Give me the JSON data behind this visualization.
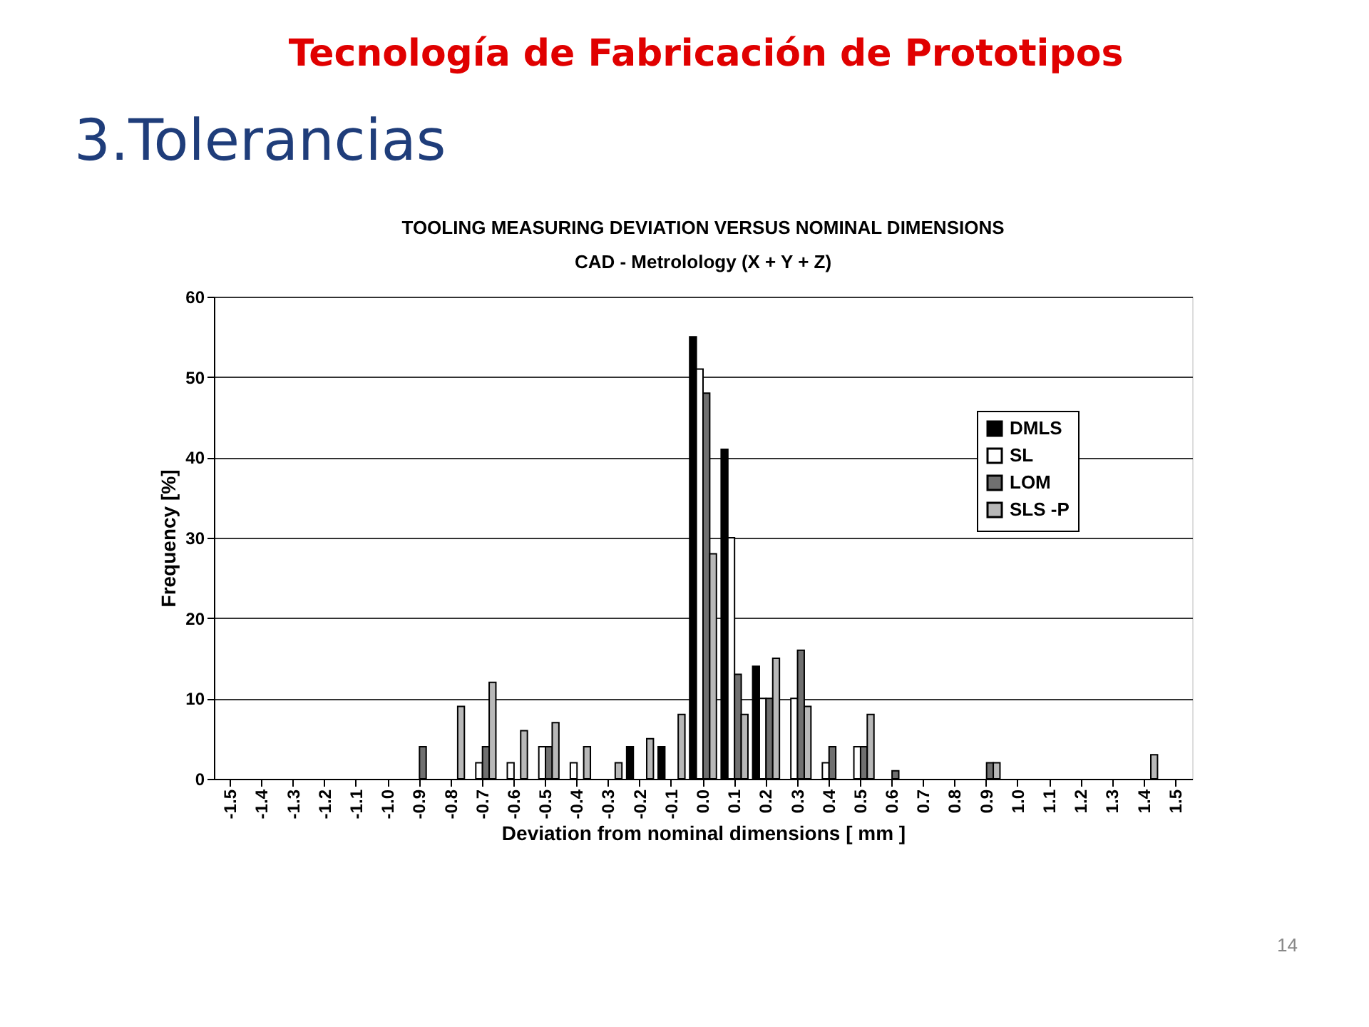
{
  "chart_data": {
    "type": "bar",
    "title": "TOOLING MEASURING DEVIATION VERSUS NOMINAL DIMENSIONS",
    "subtitle": "CAD - Metrolology  (X + Y + Z)",
    "xlabel": "Deviation from nominal dimensions [ mm ]",
    "ylabel": "Frequency [%]",
    "annotations": [
      "Tecnología de Fabricación de Prototipos",
      "3.Tolerancias",
      "14"
    ],
    "categories": [
      "-1.5",
      "-1.4",
      "-1.3",
      "-1.2",
      "-1.1",
      "-1.0",
      "-0.9",
      "-0.8",
      "-0.7",
      "-0.6",
      "-0.5",
      "-0.4",
      "-0.3",
      "-0.2",
      "-0.1",
      "0.0",
      "0.1",
      "0.2",
      "0.3",
      "0.4",
      "0.5",
      "0.6",
      "0.7",
      "0.8",
      "0.9",
      "1.0",
      "1.1",
      "1.2",
      "1.3",
      "1.4",
      "1.5"
    ],
    "series": [
      {
        "name": "DMLS",
        "color": "#000000",
        "values": [
          null,
          null,
          null,
          null,
          null,
          null,
          null,
          null,
          null,
          null,
          null,
          null,
          null,
          4,
          4,
          55,
          41,
          14,
          null,
          null,
          null,
          null,
          null,
          null,
          null,
          null,
          null,
          null,
          null,
          null,
          null
        ]
      },
      {
        "name": "SL",
        "color": "#ffffff",
        "values": [
          null,
          null,
          null,
          null,
          null,
          null,
          null,
          null,
          2,
          2,
          4,
          2,
          null,
          null,
          null,
          51,
          30,
          10,
          10,
          2,
          4,
          null,
          null,
          null,
          null,
          null,
          null,
          null,
          null,
          null,
          null
        ]
      },
      {
        "name": "LOM",
        "color": "#707070",
        "values": [
          null,
          null,
          null,
          null,
          null,
          null,
          4,
          null,
          4,
          null,
          4,
          null,
          null,
          null,
          null,
          48,
          13,
          10,
          16,
          4,
          4,
          1,
          null,
          null,
          2,
          null,
          null,
          null,
          null,
          null,
          null
        ]
      },
      {
        "name": "SLS -P",
        "color": "#b8b8b8",
        "values": [
          null,
          null,
          null,
          null,
          null,
          null,
          null,
          9,
          12,
          6,
          7,
          4,
          2,
          5,
          8,
          28,
          8,
          15,
          9,
          null,
          8,
          null,
          null,
          null,
          2,
          null,
          null,
          null,
          null,
          3,
          null
        ]
      }
    ],
    "ylim": [
      0,
      60
    ],
    "yticks": [
      0,
      10,
      20,
      30,
      40,
      50,
      60
    ],
    "grid": "y",
    "legend": "top right"
  }
}
